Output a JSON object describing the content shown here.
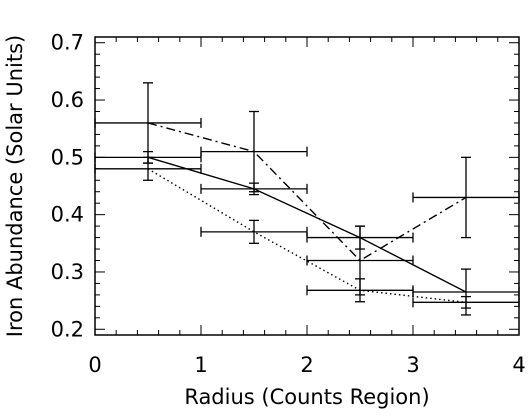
{
  "chart_data": {
    "type": "scatter",
    "title": "",
    "xlabel": "Radius (Counts Region)",
    "ylabel": "Iron Abundance (Solar Units)",
    "xlim": [
      0,
      4
    ],
    "ylim": [
      0.19,
      0.71
    ],
    "xticks": [
      "0",
      "1",
      "2",
      "3",
      "4"
    ],
    "yticks": [
      "0.2",
      "0.3",
      "0.4",
      "0.5",
      "0.6",
      "0.7"
    ],
    "grid": false,
    "legend": "none",
    "series": [
      {
        "line_style": "solid",
        "points": [
          {
            "x": 0.5,
            "y": 0.5,
            "xerr": 0.5,
            "yerr": 0.01
          },
          {
            "x": 1.5,
            "y": 0.445,
            "xerr": 0.5,
            "yerr": 0.01
          },
          {
            "x": 2.5,
            "y": 0.36,
            "xerr": 0.5,
            "yerr": 0.02
          },
          {
            "x": 3.5,
            "y": 0.265,
            "xerr": 0.5,
            "yerr": 0.04
          }
        ]
      },
      {
        "line_style": "dash-dot",
        "points": [
          {
            "x": 0.5,
            "y": 0.56,
            "xerr": 0.5,
            "yerr": 0.07
          },
          {
            "x": 1.5,
            "y": 0.51,
            "xerr": 0.5,
            "yerr": 0.07
          },
          {
            "x": 2.5,
            "y": 0.32,
            "xerr": 0.5,
            "yerr": 0.06
          },
          {
            "x": 3.5,
            "y": 0.43,
            "xerr": 0.5,
            "yerr": 0.07
          }
        ]
      },
      {
        "line_style": "dotted",
        "points": [
          {
            "x": 0.5,
            "y": 0.48,
            "xerr": 0.5,
            "yerr": 0.02
          },
          {
            "x": 1.5,
            "y": 0.37,
            "xerr": 0.5,
            "yerr": 0.02
          },
          {
            "x": 2.5,
            "y": 0.268,
            "xerr": 0.5,
            "yerr": 0.02
          },
          {
            "x": 3.5,
            "y": 0.247,
            "xerr": 0.5,
            "yerr": 0.01
          }
        ]
      }
    ]
  }
}
